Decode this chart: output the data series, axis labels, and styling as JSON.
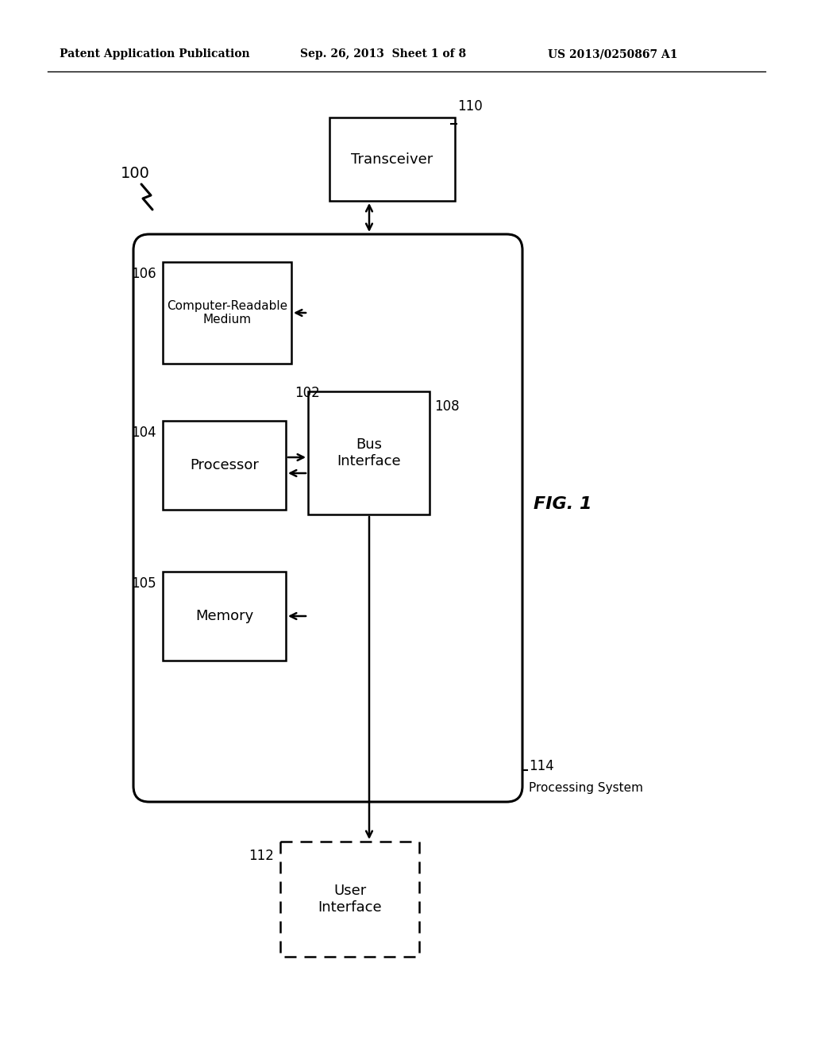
{
  "bg_color": "#ffffff",
  "header_left": "Patent Application Publication",
  "header_center": "Sep. 26, 2013  Sheet 1 of 8",
  "header_right": "US 2013/0250867 A1",
  "fig_label": "FIG. 1",
  "label_100": "100",
  "label_102": "102",
  "label_104": "104",
  "label_105": "105",
  "label_106": "106",
  "label_108": "108",
  "label_110": "110",
  "label_112": "112",
  "label_114": "114",
  "box_transceiver": "Transceiver",
  "box_bus_interface": "Bus\nInterface",
  "box_computer_readable": "Computer-Readable\nMedium",
  "box_processor": "Processor",
  "box_memory": "Memory",
  "box_user_interface": "User\nInterface",
  "label_processing_system": "Processing System",
  "line_color": "#000000"
}
